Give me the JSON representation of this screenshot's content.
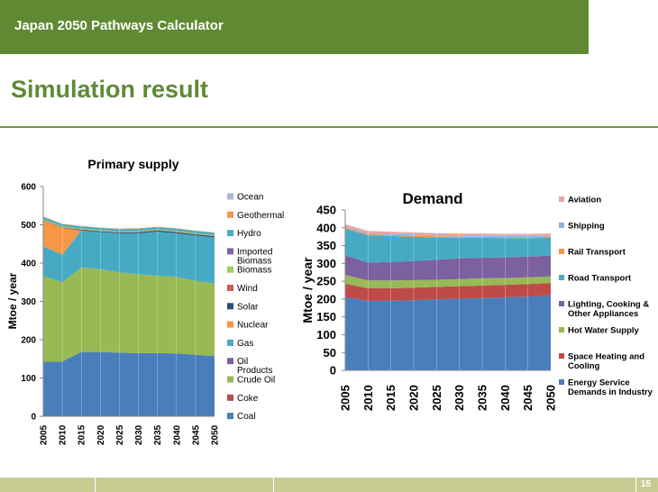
{
  "header": {
    "title": "Japan 2050 Pathways Calculator"
  },
  "slide": {
    "title": "Simulation result",
    "page_number": "15"
  },
  "colors": {
    "header_green": "#5f8a33",
    "footer_olive": "#c8cc92"
  },
  "chart_data": [
    {
      "type": "area",
      "stacked": true,
      "title": "Primary supply",
      "xlabel": "",
      "ylabel": "Mtoe / year",
      "ylim": [
        0,
        600
      ],
      "yticks": [
        0,
        100,
        200,
        300,
        400,
        500,
        600
      ],
      "x": [
        "2005",
        "2010",
        "2015",
        "2020",
        "2025",
        "2030",
        "2035",
        "2040",
        "2045",
        "2050"
      ],
      "legend_position": "right",
      "legend": [
        "Ocean",
        "Geothermal",
        "Hydro",
        "Imported Biomass",
        "Biomass",
        "Wind",
        "Solar",
        "Nuclear",
        "Gas",
        "Oil Products",
        "Crude Oil",
        "Coke",
        "Coal"
      ],
      "series": [
        {
          "name": "Coal",
          "color": "#4a7ebb",
          "values": [
            142,
            143,
            168,
            168,
            166,
            165,
            165,
            164,
            161,
            157
          ]
        },
        {
          "name": "Coke",
          "color": "#be4b48",
          "values": [
            0,
            0,
            0,
            0,
            0,
            0,
            0,
            0,
            0,
            0
          ]
        },
        {
          "name": "Crude Oil",
          "color": "#98b954",
          "values": [
            224,
            207,
            221,
            216,
            210,
            206,
            202,
            200,
            193,
            190
          ]
        },
        {
          "name": "Oil Products",
          "color": "#7d60a0",
          "values": [
            0,
            0,
            0,
            0,
            0,
            0,
            0,
            0,
            0,
            0
          ]
        },
        {
          "name": "Gas",
          "color": "#46aac5",
          "values": [
            78,
            72,
            96,
            97,
            102,
            107,
            115,
            114,
            118,
            120
          ]
        },
        {
          "name": "Nuclear",
          "color": "#f79646",
          "values": [
            67,
            70,
            0,
            0,
            0,
            0,
            0,
            0,
            0,
            0
          ]
        },
        {
          "name": "Solar",
          "color": "#2c4d75",
          "values": [
            1,
            1,
            2,
            2,
            2,
            3,
            3,
            3,
            3,
            3
          ]
        },
        {
          "name": "Wind",
          "color": "#cc5b51",
          "values": [
            1,
            1,
            1,
            1,
            1,
            1,
            1,
            1,
            1,
            1
          ]
        },
        {
          "name": "Biomass",
          "color": "#9ccc5e",
          "values": [
            2,
            2,
            2,
            2,
            2,
            2,
            2,
            2,
            2,
            2
          ]
        },
        {
          "name": "Imported Biomass",
          "color": "#8064a2",
          "values": [
            0,
            0,
            0,
            0,
            0,
            0,
            0,
            0,
            0,
            0
          ]
        },
        {
          "name": "Hydro",
          "color": "#4bacc6",
          "values": [
            6,
            6,
            6,
            6,
            6,
            6,
            6,
            6,
            6,
            6
          ]
        },
        {
          "name": "Geothermal",
          "color": "#f79646",
          "values": [
            1,
            1,
            1,
            1,
            1,
            1,
            1,
            1,
            1,
            1
          ]
        },
        {
          "name": "Ocean",
          "color": "#a9b8d8",
          "values": [
            0,
            0,
            0,
            0,
            0,
            0,
            0,
            0,
            0,
            0
          ]
        }
      ]
    },
    {
      "type": "area",
      "stacked": true,
      "title": "Demand",
      "xlabel": "",
      "ylabel": "Mtoe / year",
      "ylim": [
        0,
        450
      ],
      "yticks": [
        0,
        50,
        100,
        150,
        200,
        250,
        300,
        350,
        400,
        450
      ],
      "x": [
        "2005",
        "2010",
        "2015",
        "2020",
        "2025",
        "2030",
        "2035",
        "2040",
        "2045",
        "2050"
      ],
      "legend_position": "right",
      "legend": [
        "Aviation",
        "Shipping",
        "Rail Transport",
        "Road Transport",
        "Lighting, Cooking & Other Appliances",
        "Hot Water Supply",
        "Space Heating and Cooling",
        "Energy Service Demands in Industry"
      ],
      "series": [
        {
          "name": "Energy Service Demands in Industry",
          "color": "#4a7ebb",
          "values": [
            205,
            195,
            195,
            197,
            199,
            201,
            203,
            205,
            207,
            210
          ]
        },
        {
          "name": "Space Heating and Cooling",
          "color": "#be4b48",
          "values": [
            38,
            35,
            35,
            35,
            35,
            35,
            35,
            35,
            35,
            35
          ]
        },
        {
          "name": "Hot Water Supply",
          "color": "#98b954",
          "values": [
            25,
            22,
            22,
            21,
            20,
            20,
            20,
            19,
            19,
            19
          ]
        },
        {
          "name": "Lighting, Cooking & Other Appliances",
          "color": "#7d60a0",
          "values": [
            55,
            50,
            52,
            54,
            56,
            58,
            58,
            58,
            58,
            58
          ]
        },
        {
          "name": "Road Transport",
          "color": "#46aac5",
          "values": [
            75,
            77,
            73,
            68,
            63,
            58,
            56,
            54,
            52,
            50
          ]
        },
        {
          "name": "Rail Transport",
          "color": "#f79646",
          "values": [
            3,
            3,
            3,
            3,
            3,
            3,
            3,
            3,
            3,
            3
          ]
        },
        {
          "name": "Shipping",
          "color": "#8fb4dc",
          "values": [
            3,
            3,
            3,
            3,
            3,
            3,
            3,
            3,
            3,
            3
          ]
        },
        {
          "name": "Aviation",
          "color": "#e6a8a6",
          "values": [
            6,
            6,
            6,
            6,
            6,
            6,
            6,
            6,
            6,
            6
          ]
        }
      ]
    }
  ]
}
